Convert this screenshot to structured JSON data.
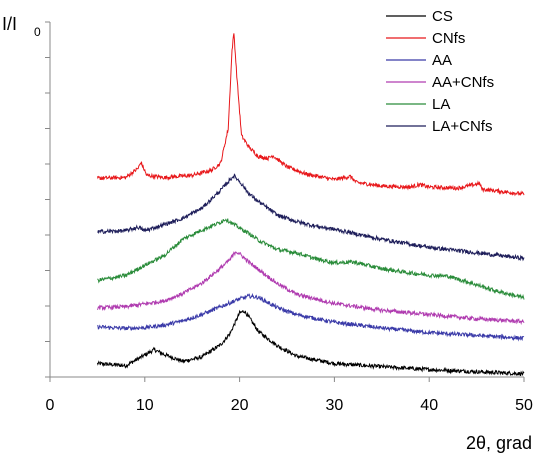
{
  "chart_data": {
    "type": "line",
    "xlabel": "2θ, grad",
    "ylabel_main": "I/I",
    "ylabel_sub": "0",
    "xlim": [
      0,
      50
    ],
    "xticks": [
      "0",
      "10",
      "20",
      "30",
      "40",
      "50"
    ],
    "y_units": "relative intensity (no numeric scale shown)",
    "ylim": [
      0,
      100
    ],
    "grid": false,
    "legend_position": "top-right",
    "series": [
      {
        "name": "CS",
        "color": "#000000",
        "points": [
          [
            5,
            3.8
          ],
          [
            8,
            3.2
          ],
          [
            10,
            6.2
          ],
          [
            11,
            7.7
          ],
          [
            12,
            6.4
          ],
          [
            14,
            4.4
          ],
          [
            16,
            5.6
          ],
          [
            18,
            9.1
          ],
          [
            19,
            12.3
          ],
          [
            20,
            18
          ],
          [
            20.5,
            18.6
          ],
          [
            21,
            16.8
          ],
          [
            22,
            12.8
          ],
          [
            24,
            8.8
          ],
          [
            26,
            5.9
          ],
          [
            30,
            3.8
          ],
          [
            35,
            2.9
          ],
          [
            40,
            2.1
          ],
          [
            45,
            1.5
          ],
          [
            50,
            0.9
          ]
        ]
      },
      {
        "name": "CNfs",
        "color": "#e8181b",
        "points": [
          [
            5,
            56
          ],
          [
            8,
            56.2
          ],
          [
            9.3,
            58.8
          ],
          [
            9.6,
            60.5
          ],
          [
            10.2,
            56.8
          ],
          [
            12,
            56.2
          ],
          [
            15,
            56.8
          ],
          [
            17,
            58.2
          ],
          [
            18,
            60.2
          ],
          [
            18.8,
            70
          ],
          [
            19.2,
            92
          ],
          [
            19.4,
            97
          ],
          [
            19.7,
            85
          ],
          [
            20.2,
            68
          ],
          [
            21,
            64.7
          ],
          [
            22,
            62.1
          ],
          [
            23,
            61.6
          ],
          [
            23.5,
            62.4
          ],
          [
            25,
            59.2
          ],
          [
            27,
            57.2
          ],
          [
            30,
            55.6
          ],
          [
            31.7,
            56.5
          ],
          [
            32.3,
            54.8
          ],
          [
            35,
            53.8
          ],
          [
            38,
            53.5
          ],
          [
            39,
            54.2
          ],
          [
            40,
            53.5
          ],
          [
            43,
            53.2
          ],
          [
            45.3,
            54.5
          ],
          [
            45.6,
            52.9
          ],
          [
            50,
            51.5
          ]
        ]
      },
      {
        "name": "AA",
        "color": "#3a3aa8",
        "points": [
          [
            5,
            14.1
          ],
          [
            8,
            13.7
          ],
          [
            10,
            13.9
          ],
          [
            12,
            14.6
          ],
          [
            14,
            15.8
          ],
          [
            16,
            17.6
          ],
          [
            18,
            19.8
          ],
          [
            20,
            22
          ],
          [
            21,
            22.8
          ],
          [
            22,
            22.4
          ],
          [
            24,
            19.5
          ],
          [
            26,
            17.6
          ],
          [
            30,
            15.4
          ],
          [
            35,
            13.8
          ],
          [
            40,
            12.5
          ],
          [
            45,
            11.7
          ],
          [
            50,
            10.9
          ]
        ]
      },
      {
        "name": "AA+CNfs",
        "color": "#b03cb0",
        "points": [
          [
            5,
            19.5
          ],
          [
            8,
            19.8
          ],
          [
            10,
            20.6
          ],
          [
            12,
            21.4
          ],
          [
            14,
            23.5
          ],
          [
            16,
            26.4
          ],
          [
            18,
            30.7
          ],
          [
            19,
            33.1
          ],
          [
            19.6,
            35.4
          ],
          [
            20,
            34.7
          ],
          [
            21,
            32.3
          ],
          [
            22,
            30.3
          ],
          [
            24,
            26.3
          ],
          [
            26,
            23.3
          ],
          [
            30,
            20.7
          ],
          [
            35,
            18.8
          ],
          [
            40,
            17.6
          ],
          [
            45,
            16.4
          ],
          [
            50,
            15.6
          ]
        ]
      },
      {
        "name": "LA",
        "color": "#2a8c3a",
        "points": [
          [
            5,
            27.2
          ],
          [
            8,
            28.6
          ],
          [
            10,
            31.5
          ],
          [
            12,
            34.1
          ],
          [
            14,
            38.8
          ],
          [
            16,
            41.4
          ],
          [
            18,
            43.6
          ],
          [
            18.5,
            44.5
          ],
          [
            19.5,
            42.8
          ],
          [
            21,
            40.4
          ],
          [
            22,
            38.5
          ],
          [
            24,
            35.9
          ],
          [
            26,
            35
          ],
          [
            28,
            33.3
          ],
          [
            30,
            32.2
          ],
          [
            32,
            32.4
          ],
          [
            35,
            30.5
          ],
          [
            38,
            29.3
          ],
          [
            40,
            28.7
          ],
          [
            42,
            28.4
          ],
          [
            44,
            26.8
          ],
          [
            47,
            24.3
          ],
          [
            50,
            22.3
          ]
        ]
      },
      {
        "name": "LA+CNfs",
        "color": "#1e1e5a",
        "points": [
          [
            5,
            40.9
          ],
          [
            8,
            41.2
          ],
          [
            9.3,
            42.2
          ],
          [
            10,
            41.2
          ],
          [
            12,
            42.9
          ],
          [
            14,
            44.7
          ],
          [
            16,
            47.5
          ],
          [
            18,
            52.6
          ],
          [
            19,
            55.6
          ],
          [
            19.4,
            56.7
          ],
          [
            20,
            55.1
          ],
          [
            21,
            51.6
          ],
          [
            22,
            49.4
          ],
          [
            24,
            45.6
          ],
          [
            26,
            43.8
          ],
          [
            28,
            42.5
          ],
          [
            30,
            41.6
          ],
          [
            35,
            38.8
          ],
          [
            40,
            36.5
          ],
          [
            45,
            35
          ],
          [
            50,
            33.4
          ]
        ]
      }
    ]
  }
}
